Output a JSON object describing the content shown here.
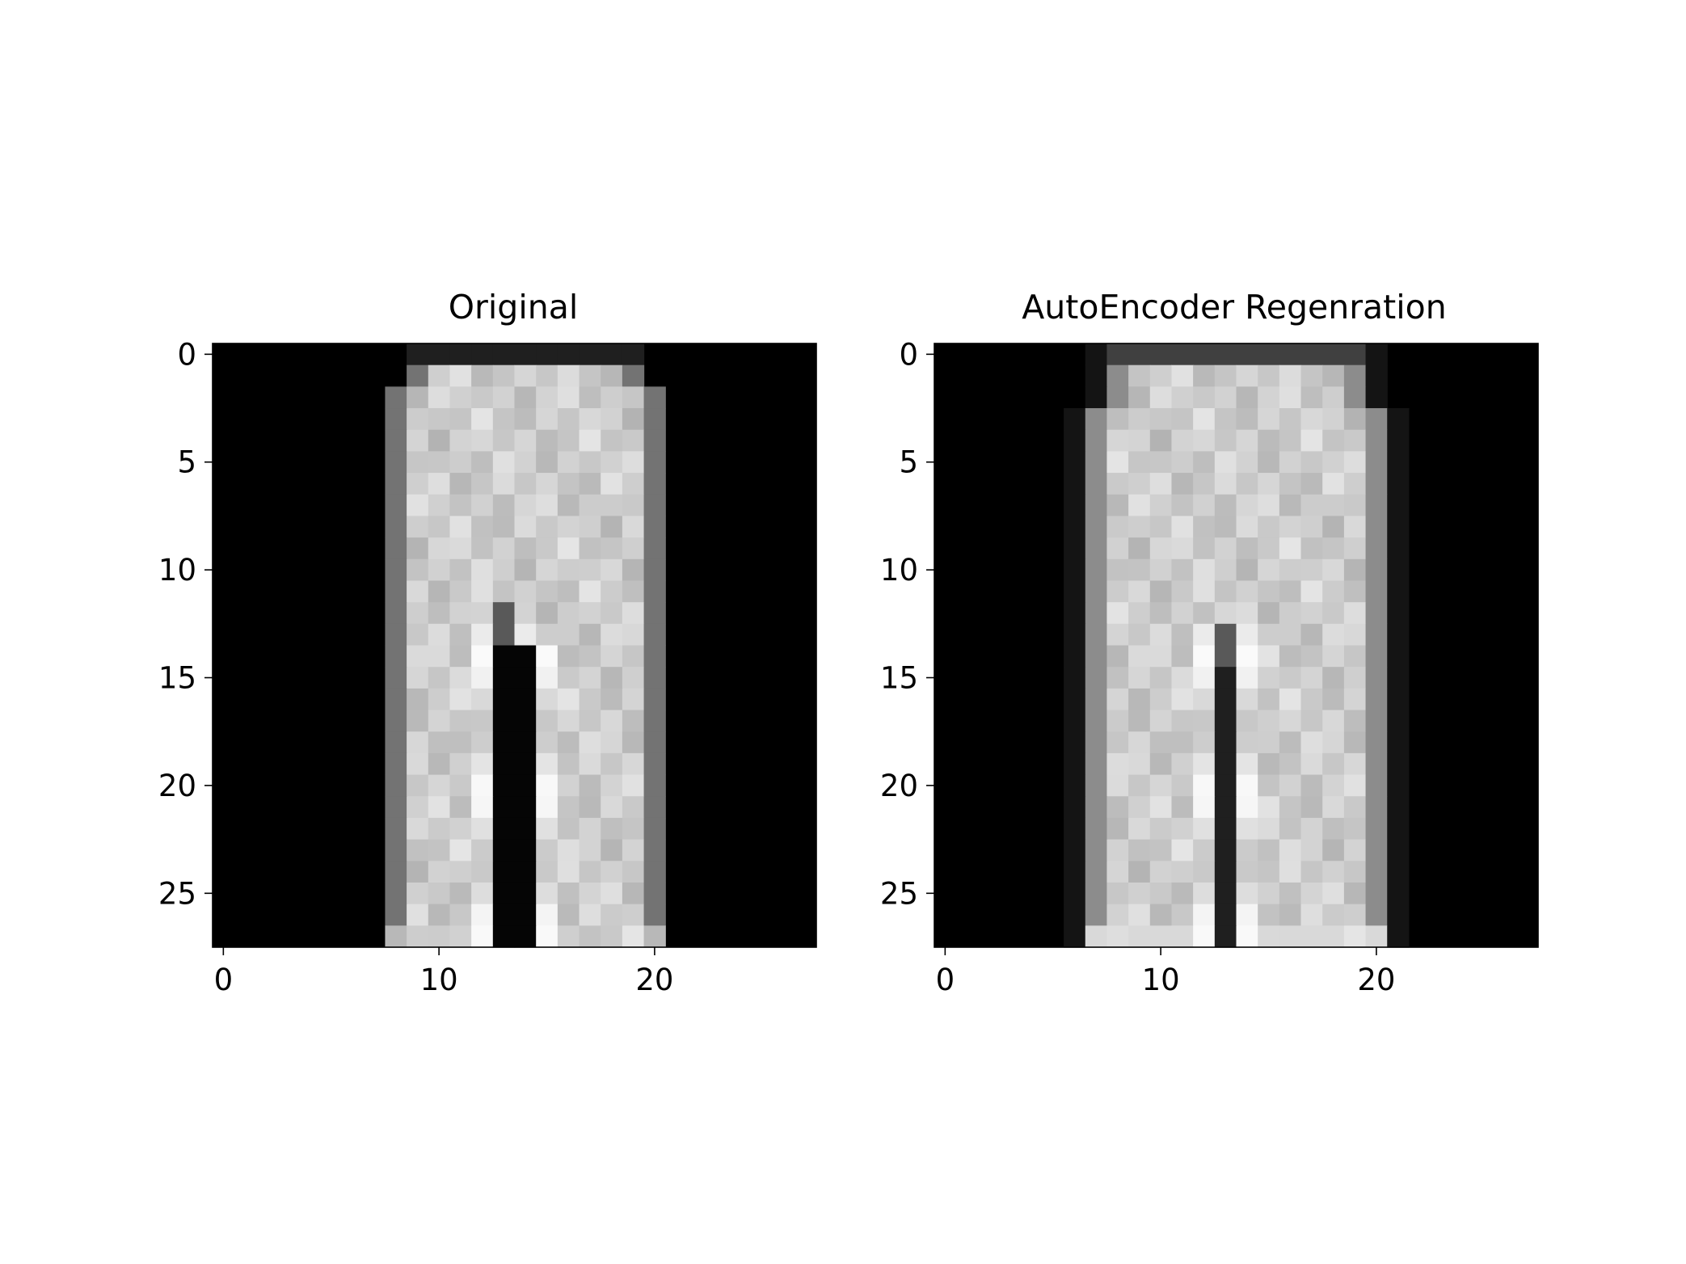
{
  "chart_data": [
    {
      "type": "heatmap",
      "title": "Original",
      "xlabel": "",
      "ylabel": "",
      "colormap": "gray",
      "grid": false,
      "xlim": [
        -0.5,
        27.5
      ],
      "ylim": [
        27.5,
        -0.5
      ],
      "xticks": [
        0,
        10,
        20
      ],
      "yticks": [
        0,
        5,
        10,
        15,
        20,
        25
      ],
      "leg": {
        "left_edge": [
          9,
          9,
          8,
          8,
          8,
          8,
          8,
          8,
          8,
          8,
          8,
          8,
          8,
          8,
          8,
          8,
          8,
          8,
          8,
          8,
          8,
          8,
          8,
          8,
          8,
          8,
          8,
          8
        ],
        "inner_left": [
          11,
          11,
          11,
          11,
          11,
          11,
          11,
          11,
          11,
          11,
          11,
          11,
          12,
          12,
          12,
          12,
          12,
          12,
          12,
          12,
          12,
          12,
          12,
          12,
          12,
          12,
          12,
          12
        ],
        "inner_right": [
          16,
          16,
          16,
          16,
          16,
          16,
          16,
          16,
          16,
          16,
          16,
          16,
          14,
          14,
          15,
          15,
          15,
          15,
          15,
          15,
          15,
          15,
          15,
          15,
          15,
          15,
          15,
          15
        ],
        "right_edge": [
          19,
          19,
          20,
          20,
          20,
          20,
          20,
          20,
          20,
          20,
          20,
          20,
          20,
          20,
          20,
          20,
          20,
          20,
          20,
          20,
          20,
          20,
          20,
          20,
          20,
          20,
          20,
          20
        ],
        "crotch_row": 12
      }
    },
    {
      "type": "heatmap",
      "title": "AutoEncoder Regenration",
      "xlabel": "",
      "ylabel": "",
      "colormap": "gray",
      "grid": false,
      "xlim": [
        -0.5,
        27.5
      ],
      "ylim": [
        27.5,
        -0.5
      ],
      "xticks": [
        0,
        10,
        20
      ],
      "yticks": [
        0,
        5,
        10,
        15,
        20,
        25
      ],
      "leg": {
        "left_edge": [
          8,
          8,
          8,
          7,
          7,
          7,
          7,
          7,
          7,
          7,
          7,
          7,
          7,
          7,
          7,
          7,
          7,
          7,
          7,
          7,
          7,
          7,
          7,
          7,
          7,
          7,
          7,
          7
        ],
        "inner_left": [
          12,
          12,
          12,
          12,
          12,
          12,
          12,
          12,
          12,
          12,
          12,
          12,
          12,
          12,
          12,
          12,
          12,
          12,
          12,
          12,
          12,
          12,
          12,
          12,
          12,
          12,
          12,
          12
        ],
        "inner_right": [
          15,
          15,
          15,
          15,
          15,
          15,
          15,
          15,
          15,
          15,
          15,
          15,
          14,
          14,
          14,
          14,
          14,
          14,
          14,
          14,
          14,
          14,
          14,
          14,
          14,
          14,
          14,
          14
        ],
        "right_edge": [
          19,
          19,
          19,
          20,
          20,
          20,
          20,
          20,
          20,
          20,
          20,
          20,
          20,
          20,
          20,
          20,
          20,
          20,
          20,
          20,
          20,
          20,
          20,
          20,
          20,
          20,
          20,
          20
        ],
        "crotch_row": 13
      }
    }
  ]
}
